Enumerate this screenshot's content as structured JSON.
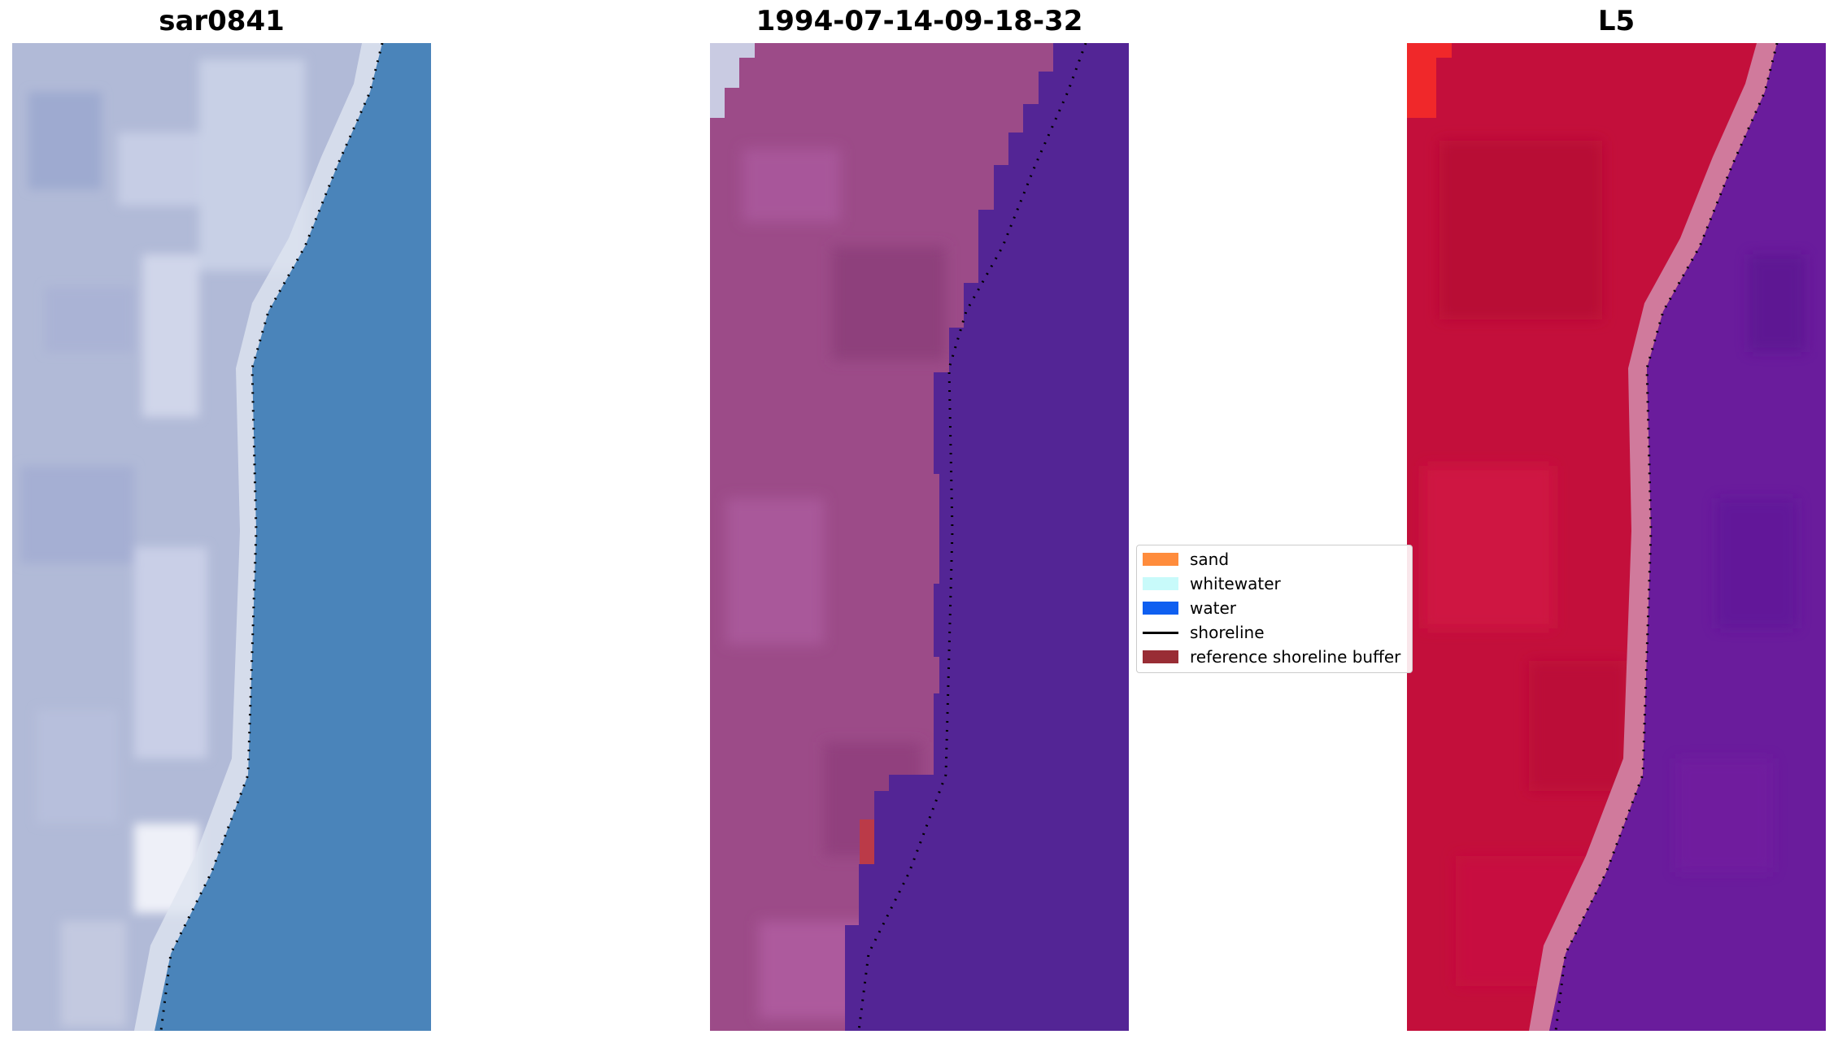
{
  "panels": [
    {
      "title": "sar0841"
    },
    {
      "title": "1994-07-14-09-18-32"
    },
    {
      "title": "L5"
    }
  ],
  "legend": [
    {
      "label": "sand",
      "color": "#ff8c3c"
    },
    {
      "label": "whitewater",
      "color": "#c8fafa"
    },
    {
      "label": "water",
      "color": "#0f5ff0"
    },
    {
      "label": "shoreline",
      "color": "#000000"
    },
    {
      "label": "reference shoreline buffer",
      "color": "#992d35"
    }
  ],
  "colors": {
    "rgb_land": "#b3bcd8",
    "rgb_sea": "#4a85bb",
    "classified_land": "#9a4a85",
    "classified_sea": "#532595",
    "mndwi_land": "#c50f3c",
    "mndwi_sea": "#6a1d9c"
  }
}
